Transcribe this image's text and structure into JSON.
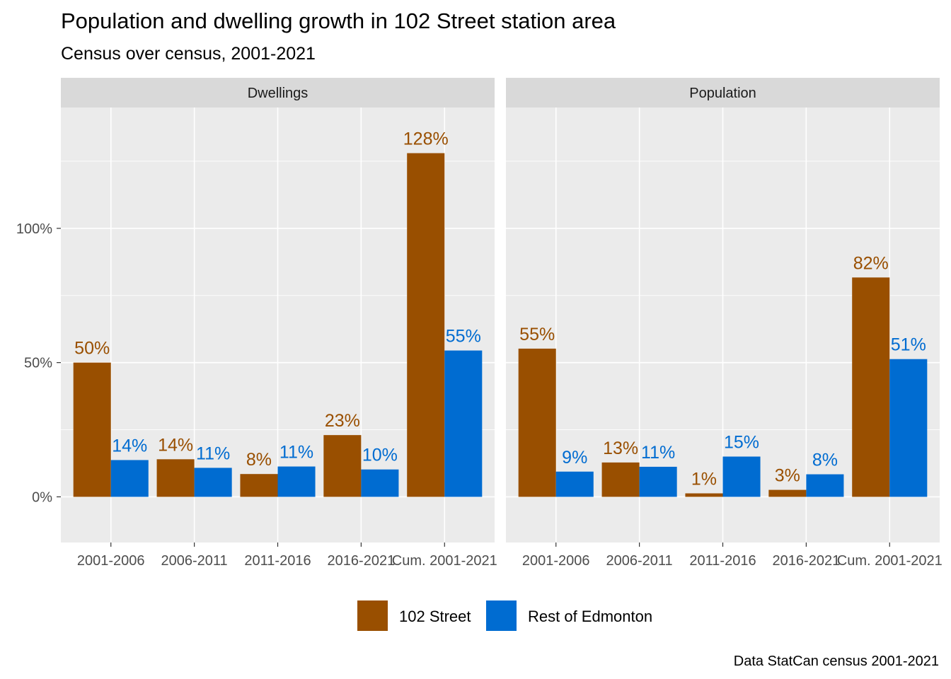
{
  "chart_data": {
    "type": "bar",
    "title": "Population and dwelling growth in 102 Street station area",
    "subtitle": "Census over census, 2001-2021",
    "caption": "Data StatCan census 2001-2021",
    "xlabel": "",
    "ylabel": "",
    "ylim": [
      -0.17,
      1.45
    ],
    "y_ticks": [
      0,
      0.5,
      1.0
    ],
    "y_tick_labels": [
      "0%",
      "50%",
      "100%"
    ],
    "grid": true,
    "legend_position": "bottom",
    "categories": [
      "2001-2006",
      "2006-2011",
      "2011-2016",
      "2016-2021",
      "Cum. 2001-2021"
    ],
    "series_colors": [
      "#994F00",
      "#006CD1"
    ],
    "legend": [
      "102 Street",
      "Rest of Edmonton"
    ],
    "facets": [
      {
        "name": "Dwellings",
        "series": [
          {
            "name": "102 Street",
            "values": [
              0.5,
              0.14,
              0.085,
              0.23,
              1.28
            ],
            "labels": [
              "50%",
              "14%",
              "8%",
              "23%",
              "128%"
            ]
          },
          {
            "name": "Rest of Edmonton",
            "values": [
              0.137,
              0.108,
              0.113,
              0.102,
              0.545
            ],
            "labels": [
              "14%",
              "11%",
              "11%",
              "10%",
              "55%"
            ]
          }
        ]
      },
      {
        "name": "Population",
        "series": [
          {
            "name": "102 Street",
            "values": [
              0.552,
              0.128,
              0.013,
              0.026,
              0.817
            ],
            "labels": [
              "55%",
              "13%",
              "1%",
              "3%",
              "82%"
            ]
          },
          {
            "name": "Rest of Edmonton",
            "values": [
              0.094,
              0.112,
              0.15,
              0.084,
              0.513
            ],
            "labels": [
              "9%",
              "11%",
              "15%",
              "8%",
              "51%"
            ]
          }
        ]
      }
    ]
  }
}
